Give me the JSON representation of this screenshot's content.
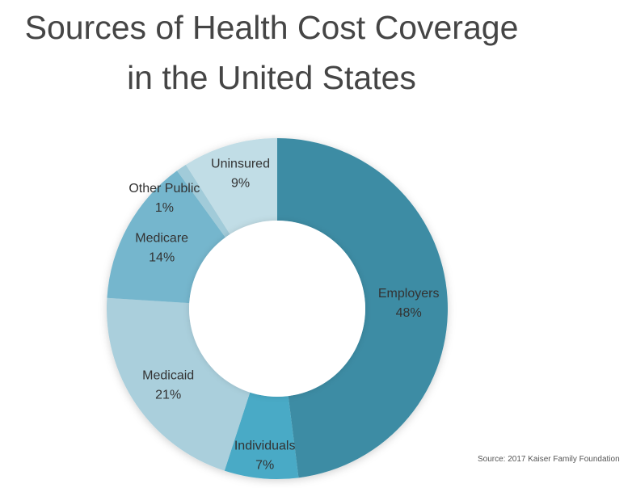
{
  "title_lines": [
    "Sources of Health Cost Coverage",
    "in the United States"
  ],
  "source": "Source: 2017 Kaiser Family Foundation",
  "chart_data": {
    "type": "pie",
    "variant": "donut",
    "title": "Sources of Health Cost Coverage in the United States",
    "categories": [
      "Employers",
      "Individuals",
      "Medicaid",
      "Medicare",
      "Other Public",
      "Uninsured"
    ],
    "values": [
      48,
      7,
      21,
      14,
      1,
      9
    ],
    "value_labels": [
      "48%",
      "7%",
      "21%",
      "14%",
      "1%",
      "9%"
    ],
    "colors": [
      "#3d8ca4",
      "#48aac6",
      "#aacfdc",
      "#74b6cd",
      "#a1cbd9",
      "#c1dde6"
    ],
    "label_placement": "inside-slices",
    "legend": "none"
  }
}
